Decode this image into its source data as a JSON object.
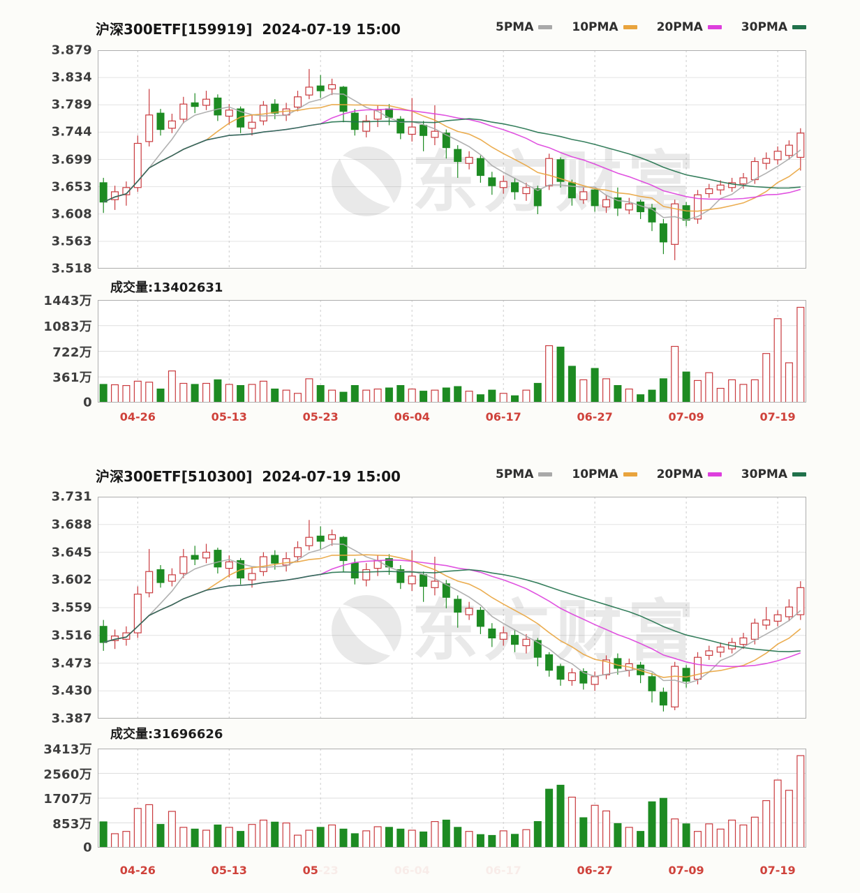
{
  "page": {
    "background": "#fcfcf9"
  },
  "watermark": {
    "text": "东方财富",
    "opacity": 0.1,
    "color": "#333333"
  },
  "chart_data": [
    {
      "type": "candlestick+volume",
      "symbol": "159919",
      "title": "沪深300ETF[159919]  2024-07-19 15:00",
      "legend": [
        {
          "label": "5PMA",
          "color": "#a9a9a9"
        },
        {
          "label": "10PMA",
          "color": "#e9a43d"
        },
        {
          "label": "20PMA",
          "color": "#dd3fdd"
        },
        {
          "label": "30PMA",
          "color": "#20714b"
        }
      ],
      "ma_periods": [
        5,
        10,
        20,
        30
      ],
      "up_color": "#c93a3e",
      "down_color": "#1d8b22",
      "y_ticks": [
        "3.879",
        "3.834",
        "3.789",
        "3.744",
        "3.699",
        "3.653",
        "3.608",
        "3.563",
        "3.518"
      ],
      "y_max": 3.879,
      "y_min": 3.518,
      "vol_text": "成交量:13402631",
      "vol_ticks": [
        "1443万",
        "1083万",
        "722万",
        "361万",
        "0"
      ],
      "vol_scale_max": 1443,
      "x_ticks": [
        {
          "label": "04-26",
          "index": 3
        },
        {
          "label": "05-13",
          "index": 11
        },
        {
          "label": "05-23",
          "index": 19
        },
        {
          "label": "06-04",
          "index": 27
        },
        {
          "label": "06-17",
          "index": 35
        },
        {
          "label": "06-27",
          "index": 43
        },
        {
          "label": "07-09",
          "index": 51
        },
        {
          "label": "07-19",
          "index": 59
        }
      ],
      "candles": [
        [
          3.66,
          3.628,
          3.61,
          3.668
        ],
        [
          3.632,
          3.645,
          3.615,
          3.655
        ],
        [
          3.64,
          3.652,
          3.622,
          3.662
        ],
        [
          3.652,
          3.725,
          3.645,
          3.738
        ],
        [
          3.728,
          3.772,
          3.72,
          3.815
        ],
        [
          3.775,
          3.748,
          3.738,
          3.782
        ],
        [
          3.75,
          3.762,
          3.742,
          3.774
        ],
        [
          3.765,
          3.79,
          3.758,
          3.802
        ],
        [
          3.792,
          3.786,
          3.775,
          3.808
        ],
        [
          3.788,
          3.798,
          3.78,
          3.812
        ],
        [
          3.8,
          3.772,
          3.762,
          3.806
        ],
        [
          3.77,
          3.78,
          3.756,
          3.79
        ],
        [
          3.782,
          3.752,
          3.742,
          3.786
        ],
        [
          3.75,
          3.76,
          3.738,
          3.772
        ],
        [
          3.762,
          3.788,
          3.755,
          3.795
        ],
        [
          3.79,
          3.775,
          3.765,
          3.798
        ],
        [
          3.772,
          3.782,
          3.762,
          3.792
        ],
        [
          3.785,
          3.802,
          3.778,
          3.812
        ],
        [
          3.805,
          3.818,
          3.798,
          3.848
        ],
        [
          3.82,
          3.812,
          3.8,
          3.838
        ],
        [
          3.815,
          3.822,
          3.805,
          3.832
        ],
        [
          3.818,
          3.778,
          3.76,
          3.82
        ],
        [
          3.775,
          3.748,
          3.738,
          3.782
        ],
        [
          3.745,
          3.762,
          3.735,
          3.772
        ],
        [
          3.765,
          3.78,
          3.752,
          3.788
        ],
        [
          3.782,
          3.768,
          3.755,
          3.79
        ],
        [
          3.765,
          3.742,
          3.732,
          3.77
        ],
        [
          3.74,
          3.752,
          3.728,
          3.8
        ],
        [
          3.755,
          3.738,
          3.712,
          3.762
        ],
        [
          3.735,
          3.745,
          3.722,
          3.788
        ],
        [
          3.742,
          3.718,
          3.7,
          3.748
        ],
        [
          3.715,
          3.695,
          3.668,
          3.722
        ],
        [
          3.692,
          3.702,
          3.682,
          3.712
        ],
        [
          3.7,
          3.672,
          3.66,
          3.705
        ],
        [
          3.668,
          3.655,
          3.64,
          3.678
        ],
        [
          3.652,
          3.662,
          3.642,
          3.672
        ],
        [
          3.66,
          3.645,
          3.632,
          3.668
        ],
        [
          3.642,
          3.652,
          3.63,
          3.66
        ],
        [
          3.65,
          3.622,
          3.608,
          3.655
        ],
        [
          3.655,
          3.7,
          3.648,
          3.708
        ],
        [
          3.698,
          3.662,
          3.652,
          3.702
        ],
        [
          3.66,
          3.635,
          3.622,
          3.665
        ],
        [
          3.632,
          3.645,
          3.625,
          3.652
        ],
        [
          3.648,
          3.622,
          3.612,
          3.65
        ],
        [
          3.62,
          3.632,
          3.61,
          3.64
        ],
        [
          3.635,
          3.618,
          3.605,
          3.652
        ],
        [
          3.615,
          3.625,
          3.608,
          3.635
        ],
        [
          3.628,
          3.612,
          3.6,
          3.632
        ],
        [
          3.618,
          3.595,
          3.58,
          3.625
        ],
        [
          3.592,
          3.562,
          3.542,
          3.6
        ],
        [
          3.558,
          3.625,
          3.532,
          3.632
        ],
        [
          3.622,
          3.598,
          3.588,
          3.628
        ],
        [
          3.6,
          3.64,
          3.592,
          3.648
        ],
        [
          3.642,
          3.65,
          3.635,
          3.658
        ],
        [
          3.648,
          3.656,
          3.64,
          3.664
        ],
        [
          3.652,
          3.66,
          3.645,
          3.668
        ],
        [
          3.658,
          3.668,
          3.65,
          3.676
        ],
        [
          3.665,
          3.695,
          3.658,
          3.702
        ],
        [
          3.692,
          3.7,
          3.682,
          3.71
        ],
        [
          3.698,
          3.712,
          3.69,
          3.72
        ],
        [
          3.705,
          3.722,
          3.698,
          3.73
        ],
        [
          3.702,
          3.742,
          3.68,
          3.75
        ]
      ],
      "volumes": [
        255,
        250,
        240,
        300,
        287,
        190,
        445,
        270,
        255,
        270,
        320,
        255,
        240,
        255,
        300,
        190,
        175,
        130,
        335,
        240,
        175,
        145,
        240,
        175,
        190,
        205,
        240,
        190,
        160,
        175,
        205,
        225,
        160,
        110,
        175,
        130,
        95,
        175,
        270,
        800,
        780,
        510,
        320,
        480,
        335,
        240,
        190,
        110,
        175,
        335,
        790,
        430,
        310,
        420,
        200,
        320,
        255,
        320,
        690,
        1180,
        560,
        1340
      ]
    },
    {
      "type": "candlestick+volume",
      "symbol": "510300",
      "title": "沪深300ETF[510300]  2024-07-19 15:00",
      "legend": [
        {
          "label": "5PMA",
          "color": "#a9a9a9"
        },
        {
          "label": "10PMA",
          "color": "#e9a43d"
        },
        {
          "label": "20PMA",
          "color": "#dd3fdd"
        },
        {
          "label": "30PMA",
          "color": "#20714b"
        }
      ],
      "ma_periods": [
        5,
        10,
        20,
        30
      ],
      "up_color": "#c93a3e",
      "down_color": "#1d8b22",
      "y_ticks": [
        "3.731",
        "3.688",
        "3.645",
        "3.602",
        "3.559",
        "3.516",
        "3.473",
        "3.430",
        "3.387"
      ],
      "y_max": 3.731,
      "y_min": 3.387,
      "vol_text": "成交量:31696626",
      "vol_ticks": [
        "3413万",
        "2560万",
        "1707万",
        "853万",
        "0"
      ],
      "vol_scale_max": 3413,
      "x_ticks": [
        {
          "label": "04-26",
          "index": 3
        },
        {
          "label": "05-13",
          "index": 11
        },
        {
          "label": "05-23",
          "index": 19,
          "visible_part": "05"
        },
        {
          "label": "06-04",
          "index": 27,
          "faded": true
        },
        {
          "label": "06-17",
          "index": 35,
          "faded": true
        },
        {
          "label": "06-27",
          "index": 43
        },
        {
          "label": "07-09",
          "index": 51
        },
        {
          "label": "07-19",
          "index": 59
        }
      ],
      "candles": [
        [
          3.53,
          3.505,
          3.492,
          3.54
        ],
        [
          3.508,
          3.515,
          3.495,
          3.525
        ],
        [
          3.51,
          3.52,
          3.5,
          3.53
        ],
        [
          3.52,
          3.58,
          3.512,
          3.592
        ],
        [
          3.582,
          3.615,
          3.575,
          3.65
        ],
        [
          3.618,
          3.598,
          3.59,
          3.625
        ],
        [
          3.6,
          3.61,
          3.592,
          3.62
        ],
        [
          3.612,
          3.638,
          3.605,
          3.65
        ],
        [
          3.64,
          3.634,
          3.625,
          3.655
        ],
        [
          3.636,
          3.645,
          3.628,
          3.658
        ],
        [
          3.648,
          3.622,
          3.612,
          3.652
        ],
        [
          3.62,
          3.63,
          3.606,
          3.64
        ],
        [
          3.632,
          3.605,
          3.595,
          3.636
        ],
        [
          3.602,
          3.612,
          3.59,
          3.622
        ],
        [
          3.615,
          3.638,
          3.608,
          3.645
        ],
        [
          3.64,
          3.628,
          3.618,
          3.648
        ],
        [
          3.625,
          3.635,
          3.615,
          3.645
        ],
        [
          3.638,
          3.652,
          3.63,
          3.662
        ],
        [
          3.655,
          3.668,
          3.648,
          3.695
        ],
        [
          3.67,
          3.662,
          3.65,
          3.685
        ],
        [
          3.665,
          3.672,
          3.655,
          3.68
        ],
        [
          3.668,
          3.632,
          3.615,
          3.67
        ],
        [
          3.628,
          3.605,
          3.595,
          3.635
        ],
        [
          3.602,
          3.618,
          3.592,
          3.628
        ],
        [
          3.62,
          3.632,
          3.608,
          3.64
        ],
        [
          3.635,
          3.622,
          3.61,
          3.642
        ],
        [
          3.618,
          3.598,
          3.588,
          3.625
        ],
        [
          3.596,
          3.608,
          3.585,
          3.648
        ],
        [
          3.61,
          3.592,
          3.568,
          3.615
        ],
        [
          3.59,
          3.6,
          3.578,
          3.638
        ],
        [
          3.596,
          3.575,
          3.558,
          3.602
        ],
        [
          3.572,
          3.552,
          3.528,
          3.578
        ],
        [
          3.548,
          3.558,
          3.54,
          3.568
        ],
        [
          3.555,
          3.53,
          3.518,
          3.56
        ],
        [
          3.526,
          3.512,
          3.498,
          3.535
        ],
        [
          3.51,
          3.52,
          3.5,
          3.53
        ],
        [
          3.516,
          3.502,
          3.49,
          3.525
        ],
        [
          3.5,
          3.51,
          3.488,
          3.518
        ],
        [
          3.508,
          3.482,
          3.468,
          3.512
        ],
        [
          3.486,
          3.462,
          3.452,
          3.49
        ],
        [
          3.468,
          3.448,
          3.438,
          3.472
        ],
        [
          3.446,
          3.458,
          3.438,
          3.465
        ],
        [
          3.46,
          3.442,
          3.432,
          3.465
        ],
        [
          3.44,
          3.452,
          3.43,
          3.46
        ],
        [
          3.455,
          3.478,
          3.448,
          3.485
        ],
        [
          3.48,
          3.465,
          3.455,
          3.488
        ],
        [
          3.462,
          3.472,
          3.452,
          3.48
        ],
        [
          3.47,
          3.455,
          3.442,
          3.475
        ],
        [
          3.452,
          3.43,
          3.412,
          3.458
        ],
        [
          3.428,
          3.408,
          3.398,
          3.435
        ],
        [
          3.405,
          3.468,
          3.4,
          3.475
        ],
        [
          3.465,
          3.445,
          3.435,
          3.47
        ],
        [
          3.448,
          3.482,
          3.44,
          3.49
        ],
        [
          3.485,
          3.492,
          3.478,
          3.5
        ],
        [
          3.49,
          3.498,
          3.482,
          3.505
        ],
        [
          3.495,
          3.505,
          3.488,
          3.512
        ],
        [
          3.502,
          3.512,
          3.495,
          3.52
        ],
        [
          3.51,
          3.535,
          3.502,
          3.542
        ],
        [
          3.532,
          3.54,
          3.525,
          3.56
        ],
        [
          3.538,
          3.548,
          3.53,
          3.555
        ],
        [
          3.545,
          3.56,
          3.538,
          3.572
        ],
        [
          3.548,
          3.59,
          3.54,
          3.6
        ]
      ],
      "volumes": [
        890,
        480,
        560,
        1350,
        1480,
        800,
        1250,
        700,
        640,
        600,
        780,
        700,
        560,
        800,
        950,
        880,
        850,
        430,
        600,
        700,
        780,
        640,
        480,
        580,
        720,
        700,
        640,
        600,
        540,
        900,
        950,
        700,
        560,
        450,
        420,
        580,
        460,
        620,
        900,
        2015,
        2150,
        1740,
        1030,
        1460,
        1265,
        830,
        700,
        560,
        1580,
        1700,
        990,
        820,
        560,
        820,
        640,
        950,
        780,
        1050,
        1620,
        2330,
        1975,
        3170
      ]
    }
  ]
}
